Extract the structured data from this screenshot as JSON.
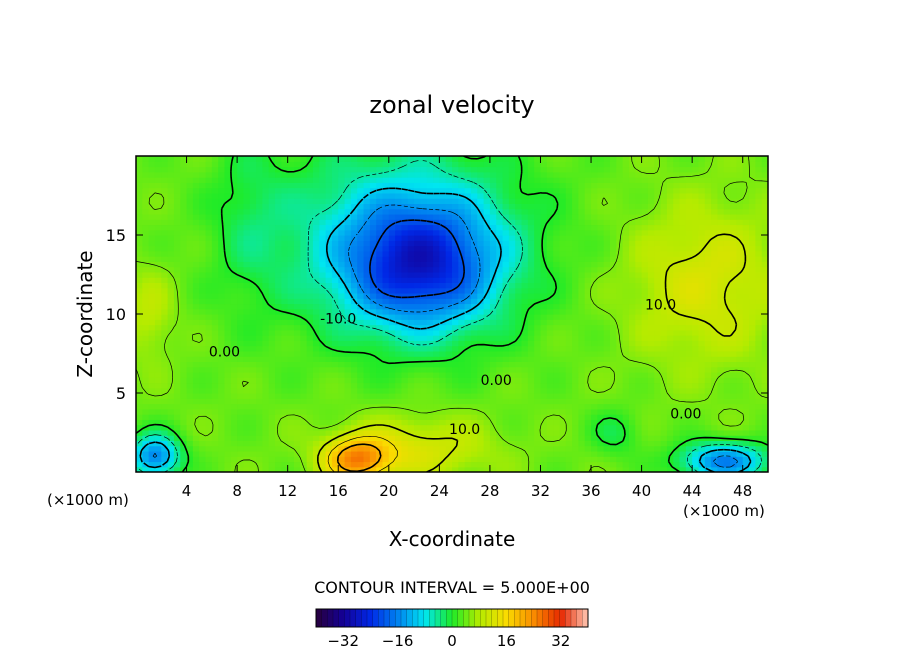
{
  "chart_data": {
    "type": "heatmap",
    "title": "zonal velocity",
    "xlabel": "X-coordinate",
    "ylabel": "Z-coordinate",
    "x_unit_label": "(×1000 m)",
    "y_unit_label": "(×1000 m)",
    "xlim": [
      0,
      50
    ],
    "ylim": [
      0,
      20
    ],
    "x_ticks": [
      4,
      8,
      12,
      16,
      20,
      24,
      28,
      32,
      36,
      40,
      44,
      48
    ],
    "y_ticks": [
      5,
      10,
      15
    ],
    "contour_interval_label": "CONTOUR INTERVAL = 5.000E+00",
    "contour_labels": [
      {
        "text": "-10.0",
        "x": 16,
        "y": 9.4
      },
      {
        "text": "0.00",
        "x": 7,
        "y": 7.3
      },
      {
        "text": "0.00",
        "x": 28.5,
        "y": 5.5
      },
      {
        "text": "10.0",
        "x": 26,
        "y": 2.4
      },
      {
        "text": "10.0",
        "x": 41.5,
        "y": 10.3
      },
      {
        "text": "0.00",
        "x": 43.5,
        "y": 3.4
      }
    ],
    "colorbar": {
      "range": [
        -40,
        40
      ],
      "ticks": [
        -32,
        -16,
        0,
        16,
        32
      ]
    },
    "features": [
      {
        "kind": "min",
        "x": 22.5,
        "y": 13,
        "value": -18
      },
      {
        "kind": "min",
        "x": 1.5,
        "y": 1.2,
        "value": -22
      },
      {
        "kind": "min",
        "x": 46,
        "y": 0.8,
        "value": -20
      },
      {
        "kind": "max",
        "x": 17.5,
        "y": 0.8,
        "value": 24
      },
      {
        "kind": "max",
        "x": 45,
        "y": 12,
        "value": 10
      }
    ],
    "grid": false
  }
}
